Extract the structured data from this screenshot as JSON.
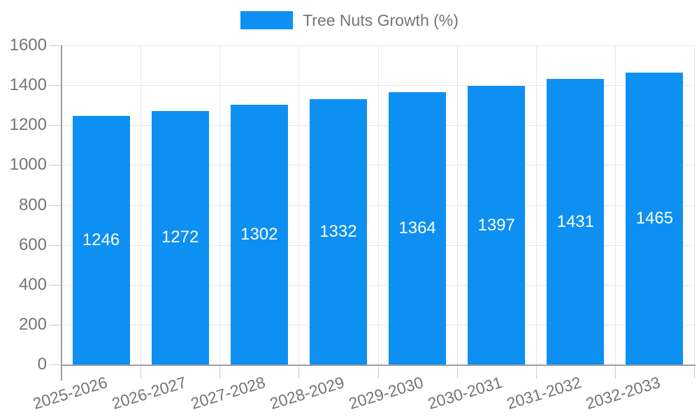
{
  "chart_data": {
    "type": "bar",
    "title": "",
    "legend": "Tree Nuts Growth (%)",
    "legend_position": "top",
    "categories": [
      "2025-2026",
      "2026-2027",
      "2027-2028",
      "2028-2029",
      "2029-2030",
      "2030-2031",
      "2031-2032",
      "2032-2033"
    ],
    "values": [
      1246,
      1272,
      1302,
      1332,
      1364,
      1397,
      1431,
      1465
    ],
    "xlabel": "",
    "ylabel": "",
    "ylim": [
      0,
      1600
    ],
    "ytick_step": 200,
    "grid": true,
    "colors": {
      "bar": "#0d90f2",
      "bar_label": "#ffffff",
      "axis_text": "#757575",
      "grid_line": "#e6e6e6",
      "tick_line": "#cccccc",
      "axis_line": "#9e9e9e"
    }
  }
}
